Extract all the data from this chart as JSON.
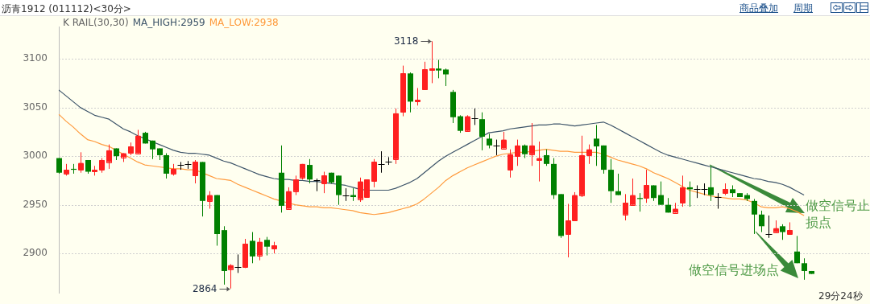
{
  "chart_data": {
    "type": "candlestick",
    "title": "沥青1912 (011112)<30分>",
    "subtitle": "K RAIL(30,30)",
    "categories": [
      null,
      null,
      null,
      null,
      null,
      null,
      null,
      null,
      null,
      null,
      null,
      null,
      null,
      null,
      null,
      null,
      null,
      null,
      null,
      null,
      null,
      null,
      null,
      null,
      null,
      null,
      null,
      null,
      null,
      null,
      null,
      null,
      null,
      null,
      null,
      null,
      null,
      null,
      null,
      null,
      null,
      null,
      null,
      null,
      null,
      null,
      null,
      null,
      null,
      null,
      null,
      null,
      null,
      null,
      null,
      null,
      null,
      null,
      null,
      null,
      null,
      null,
      null,
      null,
      null,
      null,
      null,
      null,
      null,
      null,
      null,
      null,
      null,
      null,
      null,
      null,
      null,
      null,
      null,
      null,
      null,
      null,
      null,
      null,
      null,
      null,
      null,
      null,
      null,
      null,
      null,
      null,
      null,
      null,
      null,
      null,
      null,
      null,
      null,
      null,
      null,
      null,
      null,
      null,
      null,
      null
    ],
    "ohlc": [
      [
        2998,
        2998,
        2982,
        2983
      ],
      [
        2982,
        2992,
        2980,
        2986
      ],
      [
        2987,
        2992,
        2982,
        2986
      ],
      [
        2986,
        3004,
        2983,
        2993
      ],
      [
        2996,
        2996,
        2982,
        2984
      ],
      [
        2984,
        2990,
        2980,
        2986
      ],
      [
        2986,
        2998,
        2983,
        2996
      ],
      [
        2994,
        3012,
        2987,
        3006
      ],
      [
        3008,
        3008,
        2996,
        3000
      ],
      [
        2999,
        3003,
        2994,
        3003
      ],
      [
        3003,
        3014,
        3001,
        3010
      ],
      [
        3003,
        3027,
        3003,
        3021
      ],
      [
        3024,
        3025,
        3013,
        3013
      ],
      [
        3016,
        3016,
        2997,
        3007
      ],
      [
        3008,
        3008,
        2996,
        3001
      ],
      [
        3001,
        3003,
        2977,
        2982
      ],
      [
        2982,
        2992,
        2980,
        2987
      ],
      [
        2991,
        2994,
        2986,
        2991
      ],
      [
        2992,
        2995,
        2987,
        2992
      ],
      [
        2980,
        2996,
        2972,
        2994
      ],
      [
        2994,
        2994,
        2938,
        2954
      ],
      [
        2954,
        2964,
        2946,
        2960
      ],
      [
        2960,
        2960,
        2908,
        2920
      ],
      [
        2924,
        2928,
        2868,
        2882
      ],
      [
        2884,
        2889,
        2864,
        2888
      ],
      [
        2886,
        2899,
        2880,
        2886
      ],
      [
        2886,
        2915,
        2885,
        2910
      ],
      [
        2913,
        2922,
        2890,
        2897
      ],
      [
        2898,
        2916,
        2893,
        2912
      ],
      [
        2914,
        2917,
        2898,
        2907
      ],
      [
        2905,
        2912,
        2900,
        2908
      ],
      [
        2983,
        3011,
        2942,
        2949
      ],
      [
        2946,
        2968,
        2946,
        2964
      ],
      [
        2964,
        2980,
        2960,
        2976
      ],
      [
        2978,
        2992,
        2976,
        2992
      ],
      [
        2991,
        2997,
        2972,
        2976
      ],
      [
        2975,
        2977,
        2964,
        2975
      ],
      [
        2972,
        2984,
        2962,
        2980
      ],
      [
        2983,
        2983,
        2972,
        2973
      ],
      [
        2980,
        2980,
        2950,
        2960
      ],
      [
        2960,
        2967,
        2954,
        2960
      ],
      [
        2960,
        2967,
        2954,
        2958
      ],
      [
        2956,
        2978,
        2953,
        2974
      ],
      [
        2958,
        2976,
        2958,
        2976
      ],
      [
        2974,
        2997,
        2968,
        2994
      ],
      [
        2992,
        3005,
        2983,
        2992
      ],
      [
        2994,
        2999,
        2991,
        2994
      ],
      [
        2997,
        3049,
        2992,
        3044
      ],
      [
        3045,
        3093,
        3041,
        3085
      ],
      [
        3085,
        3086,
        3045,
        3056
      ],
      [
        3056,
        3070,
        3052,
        3058
      ],
      [
        3068,
        3097,
        3068,
        3089
      ],
      [
        3088,
        3118,
        3075,
        3090
      ],
      [
        3090,
        3099,
        3080,
        3088
      ],
      [
        3089,
        3090,
        3072,
        3084
      ],
      [
        3066,
        3068,
        3034,
        3040
      ],
      [
        3041,
        3042,
        3024,
        3026
      ],
      [
        3026,
        3042,
        3026,
        3041
      ],
      [
        3039,
        3049,
        3032,
        3039
      ],
      [
        3038,
        3045,
        3006,
        3020
      ],
      [
        3018,
        3023,
        3008,
        3011
      ],
      [
        3011,
        3017,
        3001,
        3011
      ],
      [
        3008,
        3025,
        3008,
        3017
      ],
      [
        2986,
        3007,
        2978,
        3002
      ],
      [
        3000,
        3017,
        2990,
        3011
      ],
      [
        3011,
        3012,
        2998,
        3002
      ],
      [
        3002,
        3034,
        2990,
        3011
      ],
      [
        2996,
        3015,
        2974,
        2998
      ],
      [
        3001,
        3007,
        2990,
        2992
      ],
      [
        2992,
        2998,
        2956,
        2960
      ],
      [
        2961,
        2961,
        2916,
        2918
      ],
      [
        2920,
        2951,
        2896,
        2934
      ],
      [
        2934,
        2963,
        2934,
        2960
      ],
      [
        2960,
        3021,
        2958,
        3001
      ],
      [
        3001,
        3012,
        2992,
        3007
      ],
      [
        3018,
        3032,
        2990,
        3010
      ],
      [
        3011,
        3011,
        2982,
        2986
      ],
      [
        2986,
        2997,
        2952,
        2964
      ],
      [
        2964,
        2982,
        2960,
        2960
      ],
      [
        2940,
        2961,
        2934,
        2952
      ],
      [
        2950,
        2977,
        2950,
        2960
      ],
      [
        2957,
        2962,
        2943,
        2956
      ],
      [
        2957,
        2986,
        2952,
        2970
      ],
      [
        2970,
        2970,
        2954,
        2957
      ],
      [
        2960,
        2974,
        2950,
        2950
      ],
      [
        2950,
        2957,
        2942,
        2942
      ],
      [
        2942,
        2952,
        2942,
        2946
      ],
      [
        2952,
        2980,
        2948,
        2968
      ],
      [
        2968,
        2974,
        2948,
        2966
      ],
      [
        2966,
        2970,
        2957,
        2966
      ],
      [
        2966,
        2972,
        2960,
        2966
      ],
      [
        2968,
        2990,
        2954,
        2960
      ],
      [
        2958,
        2962,
        2946,
        2958
      ],
      [
        2962,
        2972,
        2960,
        2966
      ],
      [
        2966,
        2970,
        2958,
        2962
      ],
      [
        2962,
        2962,
        2958,
        2958
      ],
      [
        2960,
        2962,
        2954,
        2956
      ],
      [
        2954,
        2956,
        2920,
        2940
      ],
      [
        2940,
        2944,
        2922,
        2928
      ],
      [
        2920,
        2939,
        2916,
        2920
      ],
      [
        2922,
        2934,
        2922,
        2926
      ],
      [
        2928,
        2930,
        2914,
        2922
      ],
      [
        2920,
        2932,
        2920,
        2924
      ],
      [
        2902,
        2918,
        2890,
        2890
      ],
      [
        2890,
        2895,
        2873,
        2882
      ],
      [
        2882,
        2882,
        2879,
        2879
      ]
    ],
    "colors": [
      "#008000",
      "#ff2020",
      "#008000",
      "#ff2020",
      "#008000",
      "#ff2020",
      "#ff2020",
      "#ff2020",
      "#008000",
      "#ff2020",
      "#ff2020",
      "#ff2020",
      "#008000",
      "#008000",
      "#008000",
      "#008000",
      "#ff2020",
      "#000000",
      "#000000",
      "#ff2020",
      "#008000",
      "#ff2020",
      "#008000",
      "#008000",
      "#ff2020",
      "#000000",
      "#ff2020",
      "#008000",
      "#ff2020",
      "#008000",
      "#ff2020",
      "#008000",
      "#ff2020",
      "#ff2020",
      "#ff2020",
      "#008000",
      "#000000",
      "#ff2020",
      "#008000",
      "#008000",
      "#000000",
      "#008000",
      "#ff2020",
      "#ff2020",
      "#ff2020",
      "#000000",
      "#000000",
      "#ff2020",
      "#ff2020",
      "#008000",
      "#ff2020",
      "#ff2020",
      "#ff2020",
      "#008000",
      "#008000",
      "#008000",
      "#008000",
      "#ff2020",
      "#000000",
      "#008000",
      "#008000",
      "#000000",
      "#ff2020",
      "#ff2020",
      "#ff2020",
      "#008000",
      "#ff2020",
      "#ff2020",
      "#008000",
      "#008000",
      "#008000",
      "#ff2020",
      "#ff2020",
      "#ff2020",
      "#ff2020",
      "#008000",
      "#008000",
      "#008000",
      "#008000",
      "#ff2020",
      "#ff2020",
      "#008000",
      "#ff2020",
      "#008000",
      "#008000",
      "#008000",
      "#ff2020",
      "#ff2020",
      "#008000",
      "#000000",
      "#000000",
      "#008000",
      "#000000",
      "#ff2020",
      "#008000",
      "#008000",
      "#008000",
      "#008000",
      "#008000",
      "#000000",
      "#ff2020",
      "#008000",
      "#ff2020",
      "#008000",
      "#008000",
      "#008000"
    ],
    "series": [
      {
        "name": "MA_HIGH:2959",
        "type": "line",
        "color": "#3d5469",
        "values": [
          3068,
          3062,
          3056,
          3050,
          3046,
          3042,
          3040,
          3038,
          3033,
          3028,
          3025,
          3021,
          3018,
          3015,
          3012,
          3009,
          3006,
          3004,
          3003,
          3003,
          3002,
          3001,
          2998,
          2995,
          2993,
          2990,
          2987,
          2984,
          2981,
          2979,
          2977,
          2976,
          2976,
          2975,
          2975,
          2974,
          2974,
          2973,
          2972,
          2971,
          2970,
          2968,
          2966,
          2965,
          2965,
          2965,
          2965,
          2967,
          2970,
          2973,
          2977,
          2983,
          2989,
          2995,
          3000,
          3004,
          3008,
          3012,
          3016,
          3020,
          3024,
          3025,
          3026,
          3028,
          3029,
          3030,
          3031,
          3032,
          3032,
          3033,
          3033,
          3032,
          3031,
          3032,
          3033,
          3034,
          3035,
          3032,
          3028,
          3024,
          3020,
          3016,
          3012,
          3008,
          3004,
          3001,
          2999,
          2997,
          2995,
          2993,
          2991,
          2989,
          2987,
          2985,
          2983,
          2981,
          2979,
          2977,
          2976,
          2974,
          2973,
          2971,
          2968,
          2964,
          2960,
          null
        ]
      },
      {
        "name": "MA_LOW:2938",
        "type": "line",
        "color": "#ff9a3c",
        "values": [
          3043,
          3036,
          3030,
          3023,
          3017,
          3015,
          3012,
          3010,
          3006,
          3002,
          2998,
          2994,
          2991,
          2990,
          2989,
          2988,
          2987,
          2987,
          2986,
          2986,
          2983,
          2980,
          2977,
          2976,
          2975,
          2971,
          2968,
          2965,
          2962,
          2959,
          2956,
          2954,
          2952,
          2950,
          2949,
          2948,
          2948,
          2947,
          2947,
          2946,
          2945,
          2944,
          2942,
          2941,
          2940,
          2941,
          2942,
          2944,
          2946,
          2948,
          2951,
          2956,
          2962,
          2968,
          2975,
          2980,
          2984,
          2988,
          2991,
          2994,
          2997,
          3000,
          3002,
          3003,
          3004,
          3004,
          3005,
          3006,
          3007,
          3006,
          3005,
          3005,
          3004,
          3004,
          3004,
          3004,
          3002,
          2999,
          2996,
          2994,
          2992,
          2990,
          2987,
          2983,
          2980,
          2977,
          2973,
          2969,
          2965,
          2963,
          2961,
          2959,
          2958,
          2957,
          2956,
          2956,
          2955,
          2952,
          2948,
          2947,
          2947,
          2948,
          2946,
          2943,
          2939,
          null
        ]
      }
    ],
    "ylim": [
      2859,
      3133
    ],
    "yticks": [
      2900,
      2950,
      3000,
      3050,
      3100
    ],
    "grid": "y",
    "tick_labels": "y",
    "legend": "top left",
    "annotations": [
      "3118",
      "2864",
      "做空信号止损点",
      "做空信号进场点",
      "29分24秒",
      "商品叠加",
      "周期"
    ]
  }
}
